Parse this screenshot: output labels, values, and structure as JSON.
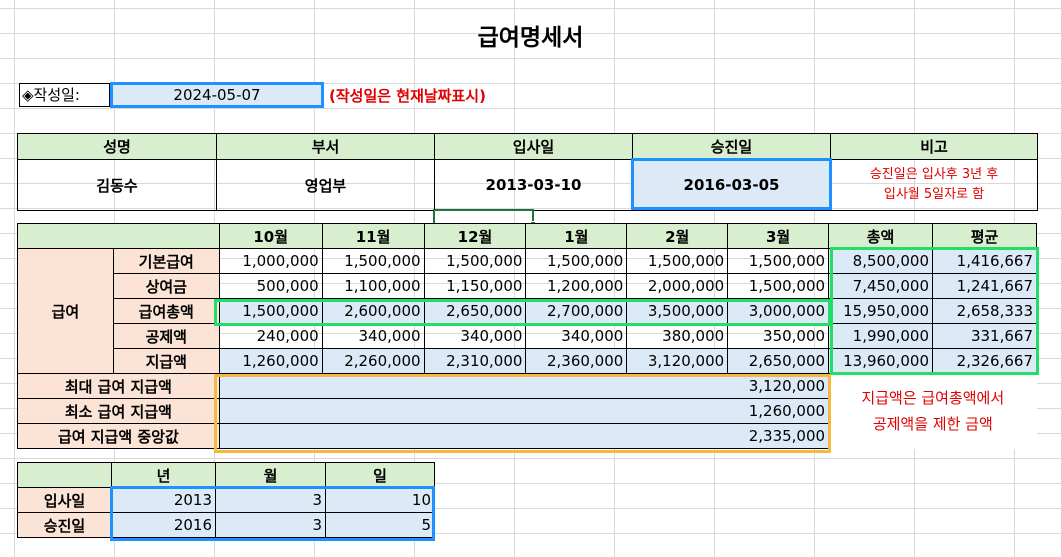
{
  "title": "급여명세서",
  "date_label": "◈작성일:",
  "date_value": "2024-05-07",
  "date_note": "(작성일은 현재날짜표시)",
  "info": {
    "headers": [
      "성명",
      "부서",
      "입사일",
      "승진일",
      "비고"
    ],
    "values": [
      "김동수",
      "영업부",
      "2013-03-10",
      "2016-03-05"
    ],
    "note_line1": "승진일은 입사후 3년 후",
    "note_line2": "입사월 5일자로 함"
  },
  "salary": {
    "months": [
      "10월",
      "11월",
      "12월",
      "1월",
      "2월",
      "3월"
    ],
    "total_header": "총액",
    "avg_header": "평균",
    "group_label": "급여",
    "rows": [
      {
        "label": "기본급여",
        "values": [
          "1,000,000",
          "1,500,000",
          "1,500,000",
          "1,500,000",
          "1,500,000",
          "1,500,000"
        ],
        "total": "8,500,000",
        "avg": "1,416,667"
      },
      {
        "label": "상여금",
        "values": [
          "500,000",
          "1,100,000",
          "1,150,000",
          "1,200,000",
          "2,000,000",
          "1,500,000"
        ],
        "total": "7,450,000",
        "avg": "1,241,667"
      },
      {
        "label": "급여총액",
        "values": [
          "1,500,000",
          "2,600,000",
          "2,650,000",
          "2,700,000",
          "3,500,000",
          "3,000,000"
        ],
        "total": "15,950,000",
        "avg": "2,658,333"
      },
      {
        "label": "공제액",
        "values": [
          "240,000",
          "340,000",
          "340,000",
          "340,000",
          "380,000",
          "350,000"
        ],
        "total": "1,990,000",
        "avg": "331,667"
      },
      {
        "label": "지급액",
        "values": [
          "1,260,000",
          "2,260,000",
          "2,310,000",
          "2,360,000",
          "3,120,000",
          "2,650,000"
        ],
        "total": "13,960,000",
        "avg": "2,326,667"
      }
    ],
    "summary": [
      {
        "label": "최대 급여 지급액",
        "value": "3,120,000"
      },
      {
        "label": "최소 급여 지급액",
        "value": "1,260,000"
      },
      {
        "label": "급여 지급액 중앙값",
        "value": "2,335,000"
      }
    ],
    "note_line1": "지급액은 급여총액에서",
    "note_line2": "공제액을 제한 금액"
  },
  "dates": {
    "headers": [
      "년",
      "월",
      "일"
    ],
    "rows": [
      {
        "label": "입사일",
        "values": [
          "2013",
          "3",
          "10"
        ]
      },
      {
        "label": "승진일",
        "values": [
          "2016",
          "3",
          "5"
        ]
      }
    ]
  },
  "colors": {
    "header_green": "#d8efcf",
    "label_peach": "#fbe4d5",
    "value_blue": "#dce9f7",
    "highlight_blue": "#1e90ff",
    "highlight_green": "#22dd66",
    "highlight_orange": "#f5b942",
    "note_red": "#e00000"
  }
}
